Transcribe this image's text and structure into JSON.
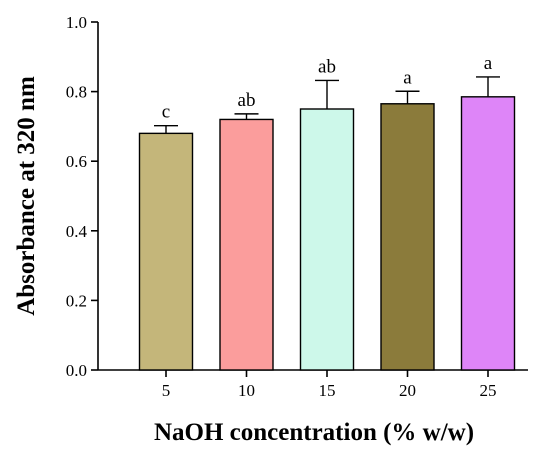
{
  "chart_data": {
    "type": "bar",
    "xlabel": "NaOH concentration (% w/w)",
    "ylabel": "Absorbance at 320 nm",
    "ylim": [
      0,
      1.0
    ],
    "yticks": [
      "0.0",
      "0.2",
      "0.4",
      "0.6",
      "0.8",
      "1.0"
    ],
    "grid": false,
    "categories": [
      "5",
      "10",
      "15",
      "20",
      "25"
    ],
    "values": [
      0.68,
      0.72,
      0.75,
      0.765,
      0.785
    ],
    "errors": [
      0.022,
      0.016,
      0.082,
      0.036,
      0.057
    ],
    "significance": [
      "c",
      "ab",
      "ab",
      "a",
      "a"
    ],
    "colors": [
      "#c4b67a",
      "#fb9d9c",
      "#cdf8ea",
      "#8b7b3b",
      "#de85f8"
    ]
  }
}
